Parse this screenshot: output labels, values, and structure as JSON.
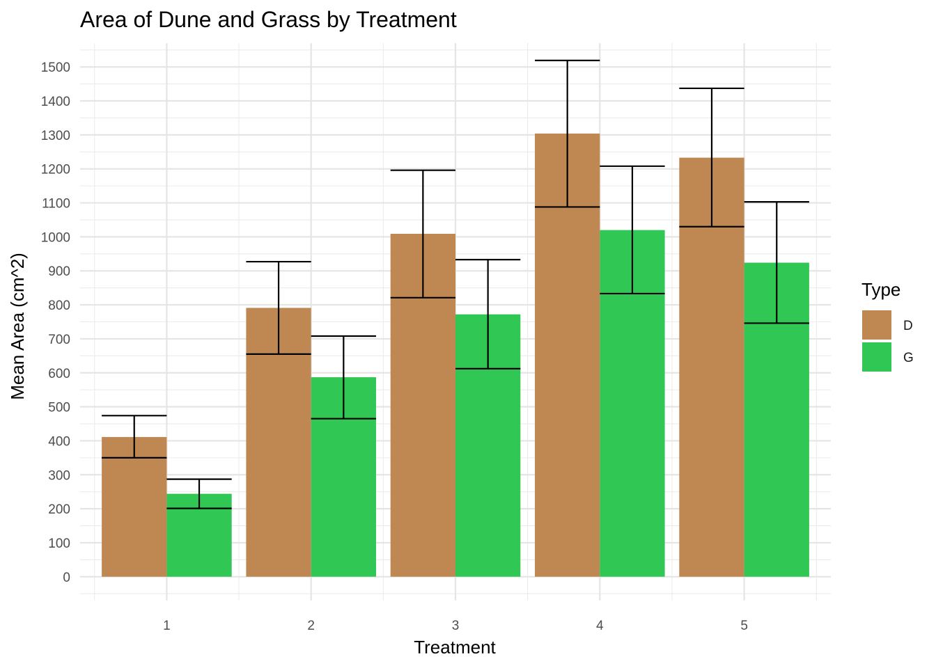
{
  "chart_data": {
    "type": "bar",
    "title": "Area of Dune and Grass by Treatment",
    "xlabel": "Treatment",
    "ylabel": "Mean Area (cm^2)",
    "categories": [
      "1",
      "2",
      "3",
      "4",
      "5"
    ],
    "ylim": [
      -70,
      1570
    ],
    "yticks": [
      0,
      100,
      200,
      300,
      400,
      500,
      600,
      700,
      800,
      900,
      1000,
      1100,
      1200,
      1300,
      1400,
      1500
    ],
    "grid": true,
    "legend": {
      "title": "Type",
      "position": "right"
    },
    "series": [
      {
        "name": "D",
        "color": "#BF8853",
        "values": [
          411,
          791,
          1009,
          1304,
          1233
        ],
        "error_low": [
          350,
          655,
          821,
          1088,
          1030
        ],
        "error_high": [
          474,
          927,
          1196,
          1519,
          1437
        ]
      },
      {
        "name": "G",
        "color": "#31C754",
        "values": [
          244,
          587,
          772,
          1020,
          924
        ],
        "error_low": [
          201,
          465,
          612,
          833,
          746
        ],
        "error_high": [
          287,
          708,
          933,
          1208,
          1103
        ]
      }
    ]
  }
}
